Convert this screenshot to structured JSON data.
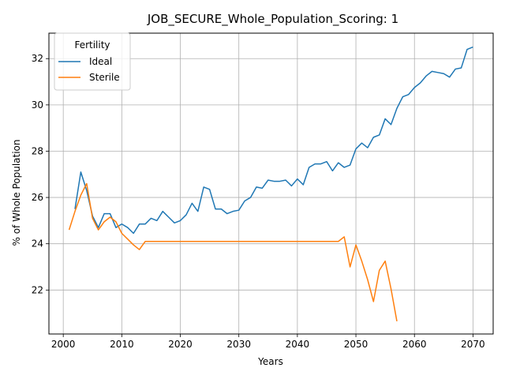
{
  "chart_data": {
    "type": "line",
    "title": "JOB_SECURE_Whole_Population_Scoring: 1",
    "xlabel": "Years",
    "ylabel": "% of Whole Population",
    "xlim": [
      1997.55,
      2073.45
    ],
    "ylim": [
      20.1,
      33.1
    ],
    "xticks": [
      2000,
      2010,
      2020,
      2030,
      2040,
      2050,
      2060,
      2070
    ],
    "yticks": [
      22,
      24,
      26,
      28,
      30,
      32
    ],
    "grid": true,
    "legend": {
      "title": "Fertility",
      "placement": "top-left"
    },
    "series": [
      {
        "name": "Ideal",
        "color": "#1f77b4",
        "x": [
          2002,
          2003,
          2004,
          2005,
          2006,
          2007,
          2008,
          2009,
          2010,
          2011,
          2012,
          2013,
          2014,
          2015,
          2016,
          2017,
          2018,
          2019,
          2020,
          2021,
          2022,
          2023,
          2024,
          2025,
          2026,
          2027,
          2028,
          2029,
          2030,
          2031,
          2032,
          2033,
          2034,
          2035,
          2036,
          2037,
          2038,
          2039,
          2040,
          2041,
          2042,
          2043,
          2044,
          2045,
          2046,
          2047,
          2048,
          2049,
          2050,
          2051,
          2052,
          2053,
          2054,
          2055,
          2056,
          2057,
          2058,
          2059,
          2060,
          2061,
          2062,
          2063,
          2064,
          2065,
          2066,
          2067,
          2068,
          2069,
          2070
        ],
        "y": [
          25.5,
          27.1,
          26.3,
          25.2,
          24.7,
          25.3,
          25.3,
          24.7,
          24.85,
          24.7,
          24.45,
          24.85,
          24.85,
          25.1,
          25.0,
          25.4,
          25.15,
          24.9,
          25.0,
          25.25,
          25.75,
          25.4,
          26.45,
          26.35,
          25.5,
          25.5,
          25.3,
          25.4,
          25.45,
          25.85,
          26.0,
          26.45,
          26.4,
          26.75,
          26.7,
          26.7,
          26.75,
          26.5,
          26.8,
          26.55,
          27.3,
          27.45,
          27.45,
          27.55,
          27.15,
          27.5,
          27.3,
          27.4,
          28.1,
          28.35,
          28.15,
          28.6,
          28.7,
          29.4,
          29.15,
          29.85,
          30.35,
          30.45,
          30.75,
          30.95,
          31.25,
          31.45,
          31.4,
          31.35,
          31.2,
          31.55,
          31.6,
          32.4,
          32.5
        ]
      },
      {
        "name": "Sterile",
        "color": "#ff7f0e",
        "x": [
          2001,
          2002,
          2003,
          2004,
          2005,
          2006,
          2007,
          2008,
          2009,
          2010,
          2011,
          2012,
          2013,
          2014,
          2015,
          2016,
          2017,
          2018,
          2019,
          2020,
          2021,
          2022,
          2023,
          2024,
          2025,
          2026,
          2027,
          2028,
          2029,
          2030,
          2031,
          2032,
          2033,
          2034,
          2035,
          2036,
          2037,
          2038,
          2039,
          2040,
          2041,
          2042,
          2043,
          2044,
          2045,
          2046,
          2047,
          2048,
          2049,
          2050,
          2051,
          2052,
          2053,
          2054,
          2055,
          2056,
          2057
        ],
        "y": [
          24.6,
          25.4,
          26.1,
          26.6,
          25.1,
          24.6,
          24.95,
          25.15,
          24.95,
          24.45,
          24.2,
          23.95,
          23.75,
          24.1,
          24.1,
          24.1,
          24.1,
          24.1,
          24.1,
          24.1,
          24.1,
          24.1,
          24.1,
          24.1,
          24.1,
          24.1,
          24.1,
          24.1,
          24.1,
          24.1,
          24.1,
          24.1,
          24.1,
          24.1,
          24.1,
          24.1,
          24.1,
          24.1,
          24.1,
          24.1,
          24.1,
          24.1,
          24.1,
          24.1,
          24.1,
          24.1,
          24.1,
          24.3,
          23.0,
          23.95,
          23.25,
          22.45,
          21.5,
          22.85,
          23.25,
          22.05,
          20.65
        ]
      }
    ]
  }
}
